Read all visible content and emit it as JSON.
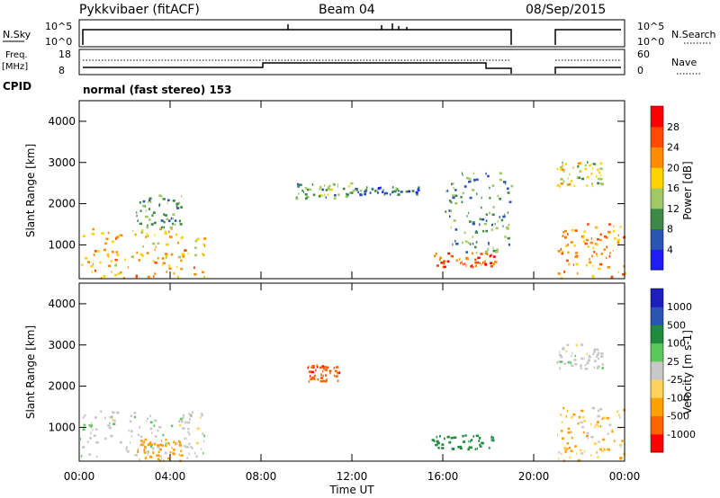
{
  "header": {
    "station": "Pykkvibaer (fitACF)",
    "beam": "Beam 04",
    "date": "08/Sep/2015",
    "cpid_label": "CPID",
    "cpid_text": "normal (fast stereo) 153"
  },
  "status_panels": {
    "nsky_label": "N.Sky",
    "nsearch_label": "N.Search",
    "freq_label_1": "Freq.",
    "freq_label_2": "[MHz]",
    "nave_label": "Nave",
    "nsky_ticks": [
      "10^5",
      "10^0"
    ],
    "nsearch_ticks": [
      "10^5",
      "10^0"
    ],
    "freq_ticks": [
      "18",
      "8"
    ],
    "nave_ticks": [
      "60",
      "0"
    ]
  },
  "chart_data": [
    {
      "type": "heatmap",
      "title": "",
      "xlabel": "",
      "ylabel": "Slant Range [km]",
      "colorbar_label": "Power [dB]",
      "xlim": [
        0,
        24
      ],
      "ylim": [
        180,
        4500
      ],
      "y_ticks": [
        "1000",
        "2000",
        "3000",
        "4000"
      ],
      "colorbar_ticks": [
        "4",
        "8",
        "12",
        "16",
        "20",
        "24",
        "28"
      ],
      "colorbar_colors": [
        "#1e1ef0",
        "#2a55b4",
        "#3c8a46",
        "#a0c864",
        "#ffd200",
        "#ff8c00",
        "#ff4a00",
        "#ff0000"
      ],
      "data_gaps_hours": [
        [
          19.0,
          20.9
        ]
      ],
      "scatter_regions": [
        {
          "t0": 0.0,
          "t1": 5.6,
          "r0": 180,
          "r1": 1400,
          "power_db": 18
        },
        {
          "t0": 2.5,
          "t1": 4.5,
          "r0": 1400,
          "r1": 2200,
          "power_db": 8
        },
        {
          "t0": 9.5,
          "t1": 12.0,
          "r0": 2100,
          "r1": 2500,
          "power_db": 10
        },
        {
          "t0": 12.0,
          "t1": 15.0,
          "r0": 2200,
          "r1": 2400,
          "power_db": 6
        },
        {
          "t0": 15.5,
          "t1": 18.3,
          "r0": 450,
          "r1": 800,
          "power_db": 24
        },
        {
          "t0": 16.0,
          "t1": 19.0,
          "r0": 800,
          "r1": 2800,
          "power_db": 8
        },
        {
          "t0": 21.0,
          "t1": 24.0,
          "r0": 180,
          "r1": 1500,
          "power_db": 20
        },
        {
          "t0": 21.0,
          "t1": 23.0,
          "r0": 2400,
          "r1": 3000,
          "power_db": 14
        }
      ]
    },
    {
      "type": "heatmap",
      "title": "",
      "xlabel": "Time UT",
      "ylabel": "Slant Range [km]",
      "colorbar_label": "Velocity [m s-1]",
      "xlim": [
        0,
        24
      ],
      "ylim": [
        180,
        4500
      ],
      "x_ticks": [
        "00:00",
        "04:00",
        "08:00",
        "12:00",
        "16:00",
        "20:00",
        "00:00"
      ],
      "y_ticks": [
        "1000",
        "2000",
        "3000",
        "4000"
      ],
      "colorbar_ticks": [
        "-1000",
        "-500",
        "-100",
        "-25",
        "25",
        "100",
        "500",
        "1000"
      ],
      "colorbar_colors": [
        "#ff0000",
        "#ff6400",
        "#ffa000",
        "#ffd25a",
        "#c8c8c8",
        "#5ac85a",
        "#1e8c3c",
        "#2a55b4",
        "#1e1ebe"
      ],
      "data_gaps_hours": [
        [
          19.0,
          20.9
        ]
      ],
      "scatter_regions": [
        {
          "t0": 0.0,
          "t1": 5.6,
          "r0": 180,
          "r1": 1400,
          "velocity": 0
        },
        {
          "t0": 2.5,
          "t1": 4.5,
          "r0": 180,
          "r1": 700,
          "velocity": -150
        },
        {
          "t0": 10.0,
          "t1": 11.5,
          "r0": 2100,
          "r1": 2500,
          "velocity": -600
        },
        {
          "t0": 15.5,
          "t1": 18.3,
          "r0": 450,
          "r1": 800,
          "velocity": 150
        },
        {
          "t0": 21.0,
          "t1": 23.0,
          "r0": 2400,
          "r1": 3000,
          "velocity": 0
        },
        {
          "t0": 21.0,
          "t1": 24.0,
          "r0": 180,
          "r1": 1500,
          "velocity": -50
        }
      ]
    }
  ]
}
